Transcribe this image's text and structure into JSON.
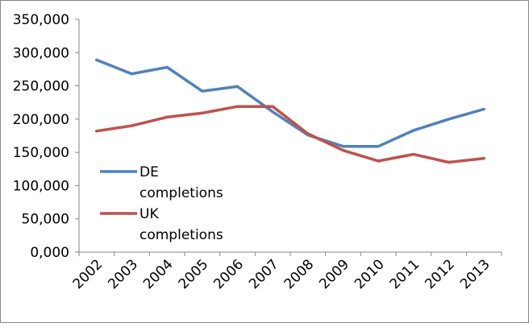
{
  "chart_data": {
    "type": "line",
    "categories": [
      "2002",
      "2003",
      "2004",
      "2005",
      "2006",
      "2007",
      "2008",
      "2009",
      "2010",
      "2011",
      "2012",
      "2013"
    ],
    "series": [
      {
        "name": "DE\ncompletions",
        "color": "#4f81bd",
        "values": [
          289000,
          268000,
          278000,
          242000,
          249000,
          211000,
          176000,
          159000,
          159000,
          183000,
          200000,
          215000
        ]
      },
      {
        "name": "UK\ncompletions",
        "color": "#c0504d",
        "values": [
          182000,
          190000,
          203000,
          209000,
          219000,
          219000,
          178000,
          153000,
          137000,
          147000,
          135000,
          141000
        ]
      }
    ],
    "y_ticks": [
      "0,000",
      "50,000",
      "100,000",
      "150,000",
      "200,000",
      "250,000",
      "300,000",
      "350,000"
    ],
    "ylim": [
      0,
      350000
    ],
    "y_tick_step": 50000,
    "grid": false,
    "legend": "inside-left"
  }
}
